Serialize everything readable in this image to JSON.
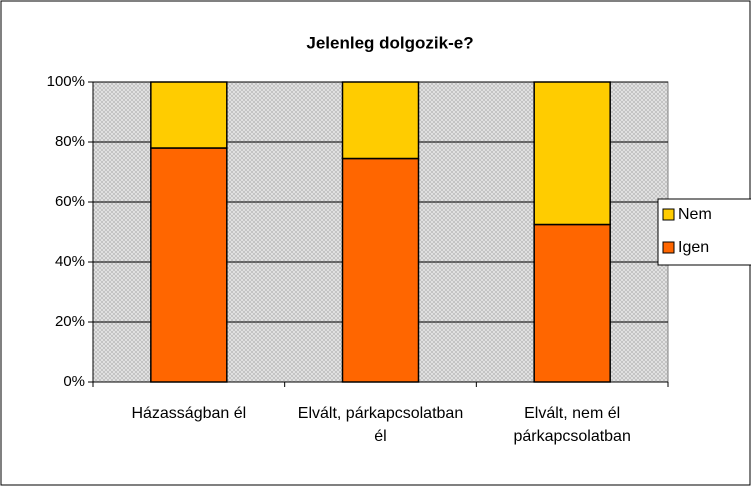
{
  "chart_data": {
    "type": "stacked_bar",
    "title": "Jelenleg dolgozik-e?",
    "categories": [
      "Házasságban él",
      "Elvált, párkapcsolatban él",
      "Elvált, nem él párkapcsolatban"
    ],
    "series": [
      {
        "name": "Igen",
        "color": "#FF6600",
        "values": [
          78,
          74.5,
          52.5
        ]
      },
      {
        "name": "Nem",
        "color": "#FFCC00",
        "values": [
          22,
          25.5,
          47.5
        ]
      }
    ],
    "ylim": [
      0,
      100
    ],
    "yticks": [
      {
        "value": 0,
        "label": "0%"
      },
      {
        "value": 20,
        "label": "20%"
      },
      {
        "value": 40,
        "label": "40%"
      },
      {
        "value": 60,
        "label": "60%"
      },
      {
        "value": 80,
        "label": "80%"
      },
      {
        "value": 100,
        "label": "100%"
      }
    ],
    "grid": true,
    "legend": "right"
  }
}
